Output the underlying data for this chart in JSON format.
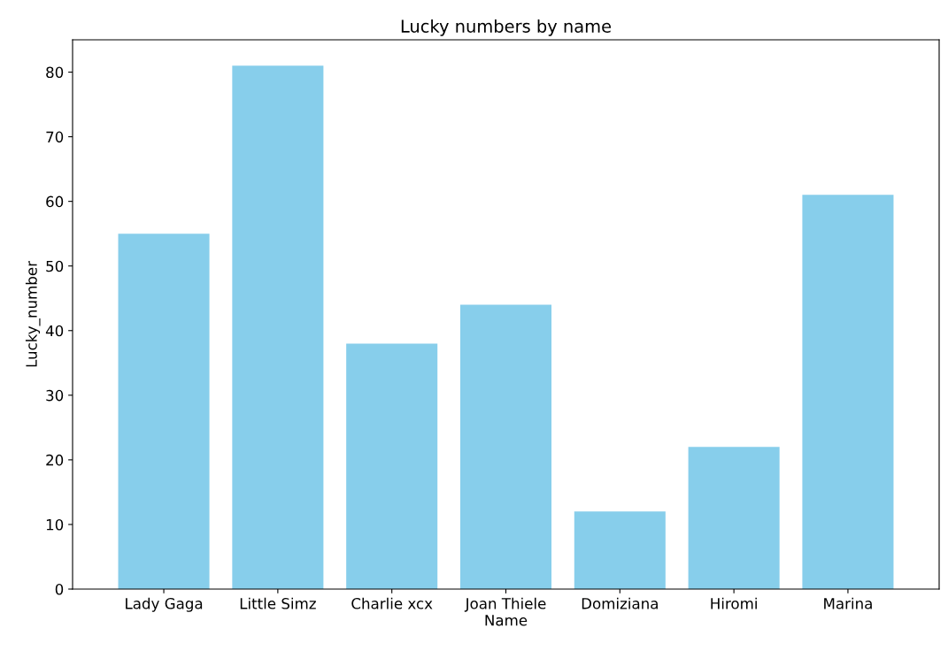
{
  "chart_data": {
    "type": "bar",
    "title": "Lucky numbers by name",
    "xlabel": "Name",
    "ylabel": "Lucky_number",
    "categories": [
      "Lady Gaga",
      "Little Simz",
      "Charlie xcx",
      "Joan Thiele",
      "Domiziana",
      "Hiromi",
      "Marina"
    ],
    "values": [
      55,
      81,
      38,
      44,
      12,
      22,
      61
    ],
    "color": "#87ceeb",
    "ylim": [
      0,
      85
    ],
    "yticks": [
      0,
      10,
      20,
      30,
      40,
      50,
      60,
      70,
      80
    ],
    "grid": false
  }
}
